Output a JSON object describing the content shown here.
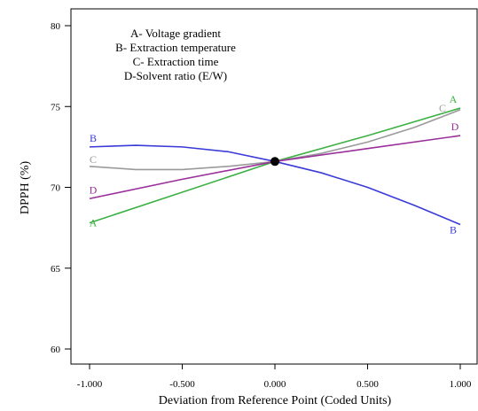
{
  "chart_data": {
    "type": "line",
    "xlabel": "Deviation from Reference Point (Coded Units)",
    "ylabel": "DPPH (%)",
    "xlim": [
      -1.0,
      1.0
    ],
    "ylim": [
      60,
      80
    ],
    "xticks": [
      "-1.000",
      "-0.500",
      "0.000",
      "0.500",
      "1.000"
    ],
    "yticks": [
      "60",
      "65",
      "70",
      "75",
      "80"
    ],
    "legend_lines": [
      "A- Voltage gradient",
      "B- Extraction temperature",
      "C- Extraction time",
      "D-Solvent ratio (E/W)"
    ],
    "reference_point": {
      "x": 0.0,
      "y": 71.6
    },
    "series": [
      {
        "name": "A",
        "color": "#3cb043",
        "x": [
          -1,
          -0.5,
          0,
          0.5,
          1
        ],
        "y": [
          67.8,
          69.7,
          71.6,
          73.2,
          74.9
        ]
      },
      {
        "name": "B",
        "color": "#3a3ad8",
        "x": [
          -1,
          -0.75,
          -0.5,
          -0.25,
          0,
          0.25,
          0.5,
          0.75,
          1
        ],
        "y": [
          72.5,
          72.6,
          72.5,
          72.2,
          71.6,
          70.9,
          70.0,
          68.9,
          67.7
        ]
      },
      {
        "name": "C",
        "color": "#9a9a9a",
        "x": [
          -1,
          -0.75,
          -0.5,
          -0.25,
          0,
          0.25,
          0.5,
          0.75,
          1
        ],
        "y": [
          71.3,
          71.1,
          71.1,
          71.3,
          71.6,
          72.1,
          72.8,
          73.7,
          74.8
        ]
      },
      {
        "name": "D",
        "color": "#9a2f9a",
        "x": [
          -1,
          -0.5,
          0,
          0.5,
          1
        ],
        "y": [
          69.3,
          70.5,
          71.6,
          72.4,
          73.2
        ]
      }
    ]
  }
}
